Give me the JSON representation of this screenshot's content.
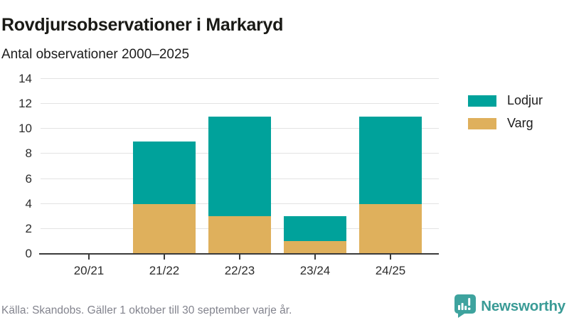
{
  "header": {
    "title": "Rovdjursobservationer i Markaryd",
    "subtitle": "Antal observationer 2000–2025"
  },
  "chart_data": {
    "type": "bar",
    "stacked": true,
    "title": "Rovdjursobservationer i Markaryd",
    "subtitle": "Antal observationer 2000–2025",
    "categories": [
      "20/21",
      "21/22",
      "22/23",
      "23/24",
      "24/25"
    ],
    "series": [
      {
        "name": "Lodjur",
        "color": "#00a29b",
        "values": [
          0,
          5,
          8,
          2,
          7
        ]
      },
      {
        "name": "Varg",
        "color": "#dfb05c",
        "values": [
          0,
          4,
          3,
          1,
          4
        ]
      }
    ],
    "stack_bottom_to_top": [
      "Varg",
      "Lodjur"
    ],
    "totals": [
      0,
      9,
      11,
      3,
      11
    ],
    "xlabel": "",
    "ylabel": "",
    "ylim": [
      0,
      14
    ],
    "yticks": [
      0,
      2,
      4,
      6,
      8,
      10,
      12,
      14
    ],
    "grid": true,
    "legend_position": "right"
  },
  "footer": {
    "source": "Källa: Skandobs. Gäller 1 oktober till 30 september varje år.",
    "brand": "Newsworthy"
  },
  "icons": {
    "brand": "bar-chart-speech-bubble-icon"
  },
  "colors": {
    "lodjur": "#00a29b",
    "varg": "#dfb05c",
    "gridline": "#e3e3e3",
    "axis": "#3b3b3b",
    "text_dark": "#1c1c1c",
    "axis_text": "#2d2d2d",
    "source_text": "#83848e",
    "brand_teal": "#3a9b96"
  }
}
